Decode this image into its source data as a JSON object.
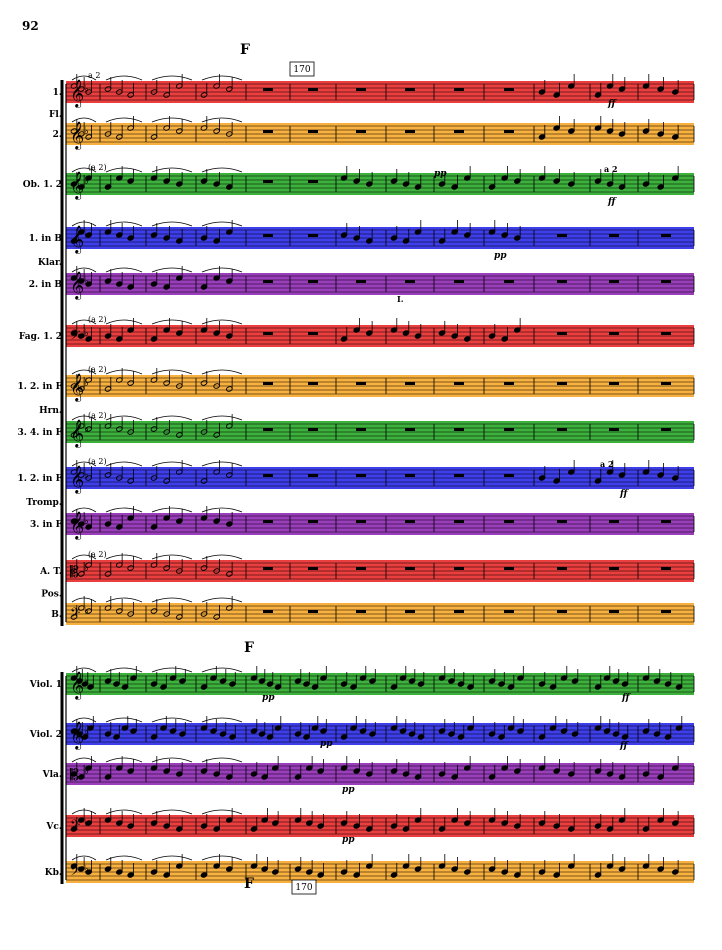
{
  "page_number": "92",
  "rehearsal_mark": "F",
  "measure_number": "170",
  "systems": [
    {
      "staves": [
        {
          "label": "1.",
          "color": "#e81c1c",
          "clef": "treble",
          "div": "a 2"
        },
        {
          "label": "2.",
          "color": "#f7a21c",
          "clef": "treble"
        },
        {
          "label": "Ob. 1. 2",
          "color": "#1aa31a",
          "clef": "treble",
          "div": "(a 2)"
        },
        {
          "label": "1. in B",
          "color": "#1c1ce8",
          "clef": "treble"
        },
        {
          "label": "2. in B",
          "color": "#8a1cb0",
          "clef": "treble"
        },
        {
          "label": "Fag. 1. 2",
          "color": "#e81c1c",
          "clef": "bass",
          "div": "(a 2)"
        },
        {
          "label": "1. 2. in F",
          "color": "#f7a21c",
          "clef": "treble",
          "div": "(a 2)"
        },
        {
          "label": "3. 4. in F",
          "color": "#1aa31a",
          "clef": "treble",
          "div": "(a 2)"
        },
        {
          "label": "1. 2. in F",
          "color": "#1c1ce8",
          "clef": "treble",
          "div": "(a 2)"
        },
        {
          "label": "3. in F",
          "color": "#8a1cb0",
          "clef": "treble"
        },
        {
          "label": "A. T.",
          "color": "#e81c1c",
          "clef": "alto",
          "div": "(a 2)"
        },
        {
          "label": "B.",
          "color": "#f7a21c",
          "clef": "bass"
        }
      ],
      "group_labels": [
        {
          "text": "Fl.",
          "between": [
            0,
            1
          ]
        },
        {
          "text": "Klar.",
          "between": [
            3,
            4
          ]
        },
        {
          "text": "Hrn.",
          "between": [
            6,
            7
          ]
        },
        {
          "text": "Tromp.",
          "between": [
            8,
            9
          ]
        },
        {
          "text": "Pos.",
          "between": [
            10,
            11
          ]
        }
      ]
    },
    {
      "staves": [
        {
          "label": "Viol. 1",
          "color": "#1aa31a",
          "clef": "treble"
        },
        {
          "label": "Viol. 2",
          "color": "#1c1ce8",
          "clef": "treble"
        },
        {
          "label": "Vla.",
          "color": "#8a1cb0",
          "clef": "alto"
        },
        {
          "label": "Vc.",
          "color": "#e81c1c",
          "clef": "bass"
        },
        {
          "label": "Kb.",
          "color": "#f7a21c",
          "clef": "bass"
        }
      ]
    }
  ],
  "dynamics": {
    "pp": "pp",
    "ff": "ff",
    "solo": "I.",
    "a2": "a 2"
  }
}
